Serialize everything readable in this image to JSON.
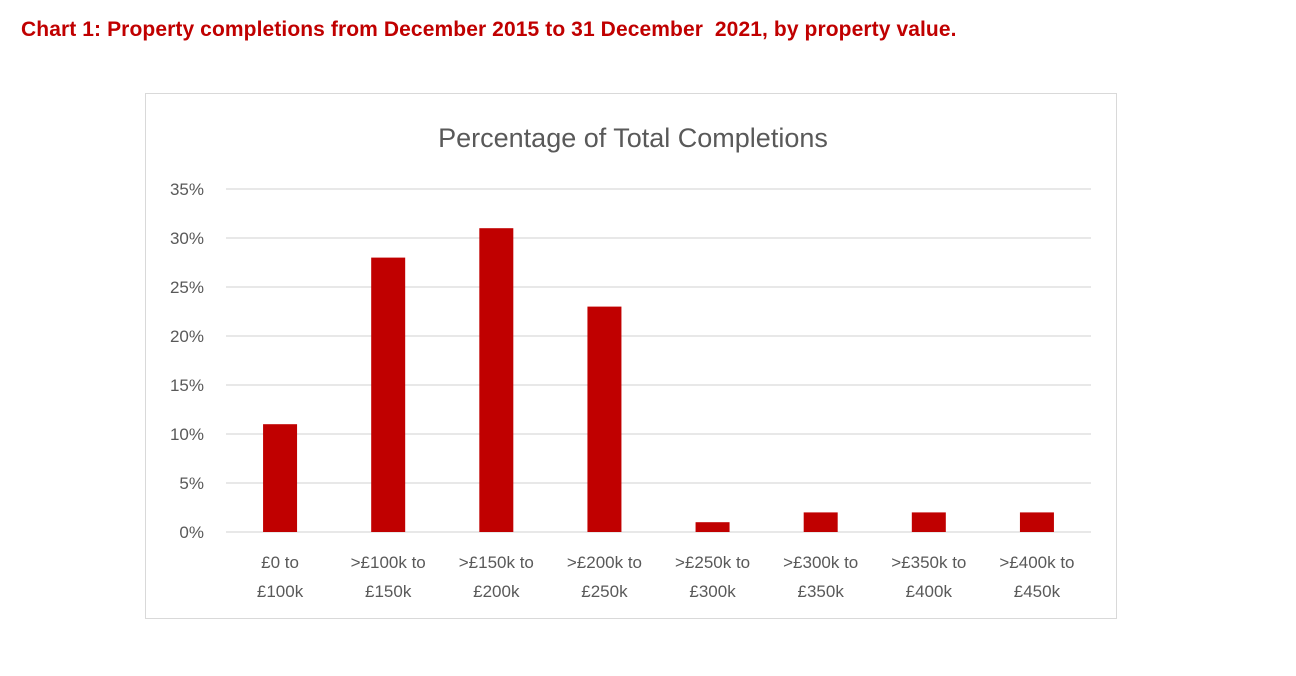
{
  "document": {
    "heading": "Chart 1: Property completions from December 2015 to 31 December  2021, by property value."
  },
  "colors": {
    "heading": "#c00000",
    "bar": "#c00000",
    "gridline": "#d9d9d9",
    "axis_text": "#595959",
    "frame": "#d9d9d9"
  },
  "chart_data": {
    "type": "bar",
    "title": "Percentage of Total Completions",
    "xlabel": "",
    "ylabel": "",
    "categories": [
      [
        "£0 to",
        "£100k"
      ],
      [
        ">£100k to",
        "£150k"
      ],
      [
        ">£150k to",
        "£200k"
      ],
      [
        ">£200k to",
        "£250k"
      ],
      [
        ">£250k to",
        "£300k"
      ],
      [
        ">£300k to",
        "£350k"
      ],
      [
        ">£350k to",
        "£400k"
      ],
      [
        ">£400k to",
        "£450k"
      ]
    ],
    "values": [
      11,
      28,
      31,
      23,
      1,
      2,
      2,
      2
    ],
    "value_unit": "%",
    "ylim": [
      0,
      35
    ],
    "yticks": [
      0,
      5,
      10,
      15,
      20,
      25,
      30,
      35
    ],
    "ytick_labels": [
      "0%",
      "5%",
      "10%",
      "15%",
      "20%",
      "25%",
      "30%",
      "35%"
    ],
    "grid": true,
    "legend": "none"
  }
}
